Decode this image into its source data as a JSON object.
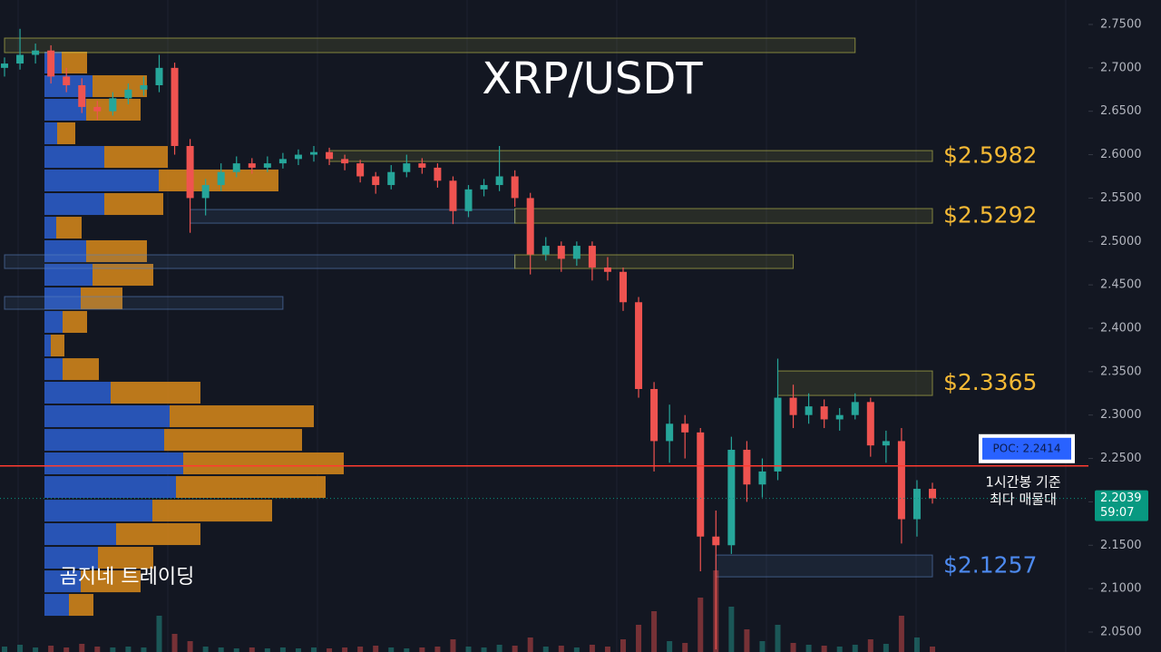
{
  "chart_data": {
    "type": "candlestick",
    "title": "XRP/USDT",
    "watermark": "곰지네 트레이딩",
    "up_color": "#26a69a",
    "down_color": "#ef5350",
    "ylim": [
      2.027,
      2.7782
    ],
    "yticks": [
      {
        "value": 2.75,
        "label": "2.7500"
      },
      {
        "value": 2.7,
        "label": "2.7000"
      },
      {
        "value": 2.65,
        "label": "2.6500"
      },
      {
        "value": 2.6,
        "label": "2.6000"
      },
      {
        "value": 2.55,
        "label": "2.5500"
      },
      {
        "value": 2.5,
        "label": "2.5000"
      },
      {
        "value": 2.45,
        "label": "2.4500"
      },
      {
        "value": 2.4,
        "label": "2.4000"
      },
      {
        "value": 2.35,
        "label": "2.3500"
      },
      {
        "value": 2.3,
        "label": "2.3000"
      },
      {
        "value": 2.25,
        "label": "2.2500"
      },
      {
        "value": 2.2,
        "label": "2.2000"
      },
      {
        "value": 2.15,
        "label": "2.1500"
      },
      {
        "value": 2.1,
        "label": "2.1000"
      },
      {
        "value": 2.05,
        "label": "2.0500"
      }
    ],
    "ohlc": [
      [
        2.7,
        2.712,
        2.69,
        2.705
      ],
      [
        2.705,
        2.745,
        2.698,
        2.715
      ],
      [
        2.715,
        2.728,
        2.705,
        2.72
      ],
      [
        2.72,
        2.726,
        2.682,
        2.69
      ],
      [
        2.69,
        2.7,
        2.672,
        2.68
      ],
      [
        2.68,
        2.688,
        2.648,
        2.655
      ],
      [
        2.655,
        2.662,
        2.64,
        2.65
      ],
      [
        2.65,
        2.672,
        2.645,
        2.665
      ],
      [
        2.665,
        2.682,
        2.658,
        2.675
      ],
      [
        2.675,
        2.69,
        2.668,
        2.68
      ],
      [
        2.68,
        2.715,
        2.672,
        2.7
      ],
      [
        2.7,
        2.706,
        2.6,
        2.61
      ],
      [
        2.61,
        2.618,
        2.51,
        2.55
      ],
      [
        2.55,
        2.572,
        2.53,
        2.565
      ],
      [
        2.565,
        2.59,
        2.558,
        2.58
      ],
      [
        2.58,
        2.598,
        2.574,
        2.59
      ],
      [
        2.59,
        2.596,
        2.578,
        2.585
      ],
      [
        2.585,
        2.598,
        2.58,
        2.59
      ],
      [
        2.59,
        2.602,
        2.584,
        2.595
      ],
      [
        2.595,
        2.606,
        2.588,
        2.6
      ],
      [
        2.6,
        2.61,
        2.592,
        2.603
      ],
      [
        2.603,
        2.608,
        2.588,
        2.595
      ],
      [
        2.595,
        2.6,
        2.582,
        2.59
      ],
      [
        2.59,
        2.594,
        2.568,
        2.575
      ],
      [
        2.575,
        2.58,
        2.555,
        2.565
      ],
      [
        2.565,
        2.588,
        2.56,
        2.58
      ],
      [
        2.58,
        2.6,
        2.574,
        2.59
      ],
      [
        2.59,
        2.596,
        2.578,
        2.585
      ],
      [
        2.585,
        2.59,
        2.562,
        2.57
      ],
      [
        2.57,
        2.575,
        2.52,
        2.535
      ],
      [
        2.535,
        2.565,
        2.528,
        2.56
      ],
      [
        2.56,
        2.572,
        2.552,
        2.565
      ],
      [
        2.565,
        2.61,
        2.558,
        2.575
      ],
      [
        2.575,
        2.582,
        2.54,
        2.55
      ],
      [
        2.55,
        2.556,
        2.462,
        2.485
      ],
      [
        2.485,
        2.505,
        2.478,
        2.495
      ],
      [
        2.495,
        2.5,
        2.465,
        2.48
      ],
      [
        2.48,
        2.5,
        2.472,
        2.495
      ],
      [
        2.495,
        2.5,
        2.455,
        2.47
      ],
      [
        2.47,
        2.482,
        2.455,
        2.465
      ],
      [
        2.465,
        2.47,
        2.42,
        2.43
      ],
      [
        2.43,
        2.436,
        2.32,
        2.33
      ],
      [
        2.33,
        2.338,
        2.235,
        2.27
      ],
      [
        2.27,
        2.312,
        2.245,
        2.29
      ],
      [
        2.29,
        2.3,
        2.25,
        2.28
      ],
      [
        2.28,
        2.285,
        2.12,
        2.16
      ],
      [
        2.16,
        2.19,
        2.03,
        2.15
      ],
      [
        2.15,
        2.275,
        2.14,
        2.26
      ],
      [
        2.26,
        2.27,
        2.2,
        2.22
      ],
      [
        2.22,
        2.25,
        2.205,
        2.235
      ],
      [
        2.235,
        2.365,
        2.225,
        2.32
      ],
      [
        2.32,
        2.335,
        2.285,
        2.3
      ],
      [
        2.3,
        2.325,
        2.29,
        2.31
      ],
      [
        2.31,
        2.318,
        2.285,
        2.295
      ],
      [
        2.295,
        2.308,
        2.282,
        2.3
      ],
      [
        2.3,
        2.325,
        2.295,
        2.315
      ],
      [
        2.315,
        2.32,
        2.252,
        2.265
      ],
      [
        2.265,
        2.282,
        2.245,
        2.27
      ],
      [
        2.27,
        2.285,
        2.152,
        2.18
      ],
      [
        2.18,
        2.225,
        2.16,
        2.215
      ],
      [
        2.215,
        2.222,
        2.198,
        2.204
      ]
    ],
    "volume": [
      6,
      8,
      5,
      7,
      5,
      9,
      6,
      5,
      6,
      5,
      40,
      20,
      12,
      6,
      5,
      4,
      5,
      4,
      5,
      4,
      5,
      4,
      5,
      6,
      7,
      5,
      4,
      5,
      6,
      14,
      6,
      5,
      8,
      7,
      16,
      6,
      7,
      5,
      8,
      6,
      14,
      30,
      45,
      12,
      10,
      60,
      90,
      50,
      25,
      12,
      30,
      10,
      8,
      7,
      6,
      8,
      14,
      9,
      40,
      16,
      6
    ],
    "profile": {
      "buy_color": "#2d5fcf",
      "sell_color": "#d98a1a",
      "levels": [
        2.7061,
        2.6789,
        2.6518,
        2.6246,
        2.5974,
        2.5703,
        2.5431,
        2.5159,
        2.4888,
        2.4616,
        2.4344,
        2.4073,
        2.3801,
        2.3529,
        2.3258,
        2.2986,
        2.2714,
        2.2443,
        2.2171,
        2.1899,
        2.1628,
        2.1356,
        2.1084,
        2.0813
      ],
      "buy": [
        19,
        53,
        46,
        14,
        66,
        126,
        66,
        13,
        46,
        53,
        40,
        20,
        7,
        20,
        73,
        138,
        132,
        153,
        145,
        119,
        79,
        59,
        40,
        27
      ],
      "sell": [
        28,
        60,
        60,
        20,
        70,
        132,
        65,
        28,
        67,
        67,
        46,
        27,
        15,
        40,
        99,
        159,
        152,
        177,
        165,
        132,
        93,
        61,
        66,
        27
      ]
    },
    "zones": [
      {
        "from": 0,
        "to": 55,
        "top": 2.7343,
        "bottom": 2.7176,
        "color": "#c8c850"
      },
      {
        "from": 21,
        "to": 60,
        "top": 2.6047,
        "bottom": 2.5922,
        "color": "#c8c850",
        "price": 2.5982,
        "label": "$2.5982"
      },
      {
        "from": 12,
        "to": 33,
        "top": 2.5368,
        "bottom": 2.5211,
        "color": "#5a82c0"
      },
      {
        "from": 33,
        "to": 60,
        "top": 2.5379,
        "bottom": 2.5211,
        "color": "#c8c850",
        "price": 2.5292,
        "label": "$2.5292"
      },
      {
        "from": 0,
        "to": 33,
        "top": 2.4846,
        "bottom": 2.4689,
        "color": "#5a82c0"
      },
      {
        "from": 33,
        "to": 51,
        "top": 2.4846,
        "bottom": 2.4689,
        "color": "#c8c850"
      },
      {
        "from": 0,
        "to": 18,
        "top": 2.4365,
        "bottom": 2.4219,
        "color": "#5a82c0"
      },
      {
        "from": 50,
        "to": 60,
        "top": 2.3508,
        "bottom": 2.3226,
        "color": "#c8c850",
        "price": 2.3365,
        "label": "$2.3365"
      },
      {
        "from": 46,
        "to": 60,
        "top": 2.1387,
        "bottom": 2.1136,
        "color": "#5a82c0",
        "price": 2.1257,
        "label": "$2.1257"
      }
    ],
    "poc": {
      "value": 2.2414,
      "label": "POC: 2.2414",
      "color": "#ff3b30"
    },
    "annotation": [
      "1시간봉 기준",
      "최다 매물대"
    ],
    "last_price": {
      "value": 2.2039,
      "countdown": "59:07",
      "color": "#089981"
    }
  }
}
